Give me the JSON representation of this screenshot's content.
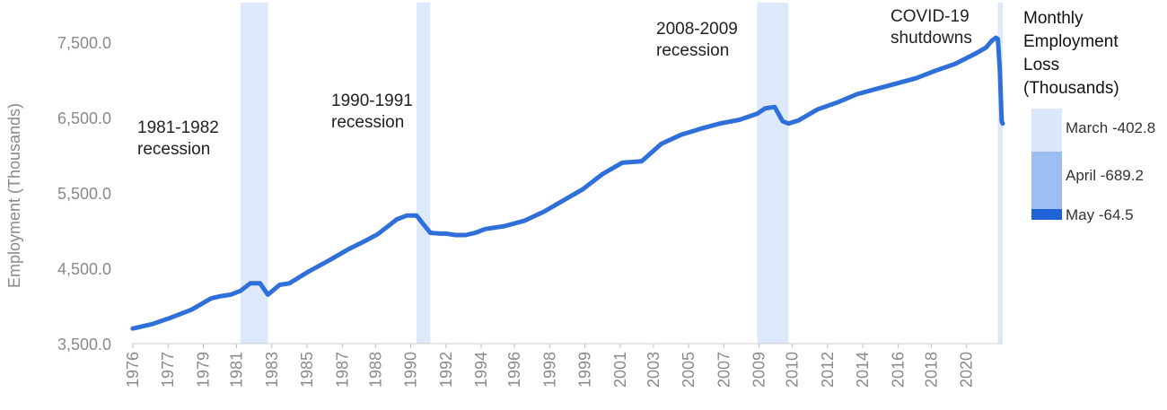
{
  "chart_data": {
    "type": "line",
    "ylabel": "Employment (Thousands)",
    "ylim": [
      3500,
      8000
    ],
    "yticks": [
      "3,500.0",
      "4,500.0",
      "5,500.0",
      "6,500.0",
      "7,500.0"
    ],
    "ytick_values": [
      3500,
      4500,
      5500,
      6500,
      7500
    ],
    "xlim": [
      1976.0,
      2020.45
    ],
    "xticks": [
      "1976",
      "1977",
      "1979",
      "1981",
      "1983",
      "1985",
      "1987",
      "1988",
      "1990",
      "1992",
      "1994",
      "1996",
      "1998",
      "1999",
      "2001",
      "2003",
      "2005",
      "2007",
      "2009",
      "2010",
      "2012",
      "2014",
      "2016",
      "2018",
      "2020"
    ],
    "xtick_values": [
      1976.0,
      1977.8,
      1979.6,
      1981.3,
      1983.1,
      1984.9,
      1986.7,
      1988.4,
      1990.2,
      1992.0,
      1993.8,
      1995.5,
      1997.3,
      1999.1,
      2000.9,
      2002.6,
      2004.4,
      2006.2,
      2008.0,
      2009.7,
      2011.5,
      2013.3,
      2015.1,
      2016.8,
      2018.6
    ],
    "recessions": [
      {
        "label": "1981-1982 recession",
        "start": 1981.5,
        "end": 1982.9
      },
      {
        "label": "1990-1991 recession",
        "start": 1990.5,
        "end": 1991.2
      },
      {
        "label": "2008-2009 recession",
        "start": 2007.9,
        "end": 2009.5
      },
      {
        "label": "COVID-19 shutdowns",
        "start": 2020.2,
        "end": 2020.45
      }
    ],
    "annotations": [
      {
        "lines": [
          "1981-1982",
          "recession"
        ]
      },
      {
        "lines": [
          "1990-1991",
          "recession"
        ]
      },
      {
        "lines": [
          "2008-2009",
          "recession"
        ]
      },
      {
        "lines": [
          "COVID-19",
          "shutdowns"
        ]
      }
    ],
    "series": [
      {
        "color": "#2f6fd9",
        "x": [
          1976.0,
          1977.0,
          1978.0,
          1979.0,
          1980.0,
          1980.5,
          1981.0,
          1981.5,
          1982.0,
          1982.5,
          1982.9,
          1983.5,
          1984.0,
          1985.0,
          1986.0,
          1987.0,
          1988.0,
          1988.5,
          1989.0,
          1989.5,
          1990.0,
          1990.3,
          1990.5,
          1990.8,
          1991.2,
          1991.7,
          1992.0,
          1992.5,
          1993.0,
          1993.5,
          1994.0,
          1995.0,
          1996.0,
          1997.0,
          1998.0,
          1999.0,
          2000.0,
          2001.0,
          2002.0,
          2003.0,
          2004.0,
          2005.0,
          2006.0,
          2007.0,
          2007.9,
          2008.3,
          2008.8,
          2009.2,
          2009.5,
          2010.0,
          2011.0,
          2012.0,
          2013.0,
          2014.0,
          2015.0,
          2016.0,
          2017.0,
          2018.0,
          2019.0,
          2019.6,
          2019.9,
          2020.1,
          2020.2,
          2020.3,
          2020.4,
          2020.45
        ],
        "y": [
          3700,
          3760,
          3850,
          3950,
          4100,
          4130,
          4150,
          4200,
          4300,
          4300,
          4150,
          4280,
          4300,
          4460,
          4600,
          4750,
          4880,
          4950,
          5050,
          5150,
          5200,
          5200,
          5200,
          5100,
          4970,
          4960,
          4960,
          4940,
          4940,
          4970,
          5020,
          5060,
          5130,
          5250,
          5400,
          5550,
          5750,
          5900,
          5920,
          6150,
          6270,
          6350,
          6420,
          6470,
          6550,
          6620,
          6640,
          6450,
          6420,
          6460,
          6610,
          6700,
          6810,
          6880,
          6950,
          7020,
          7120,
          7210,
          7340,
          7430,
          7520,
          7560,
          7540,
          7150,
          6450,
          6420
        ]
      }
    ],
    "legend": {
      "title": [
        "Monthly",
        "Employment",
        "Loss",
        "(Thousands)"
      ],
      "position": "right",
      "items": [
        {
          "label": "March -402.8",
          "color": "#dbe7fb"
        },
        {
          "label": "April -689.2",
          "color": "#9cbef3"
        },
        {
          "label": "May -64.5",
          "color": "#1e62d6"
        }
      ]
    }
  }
}
